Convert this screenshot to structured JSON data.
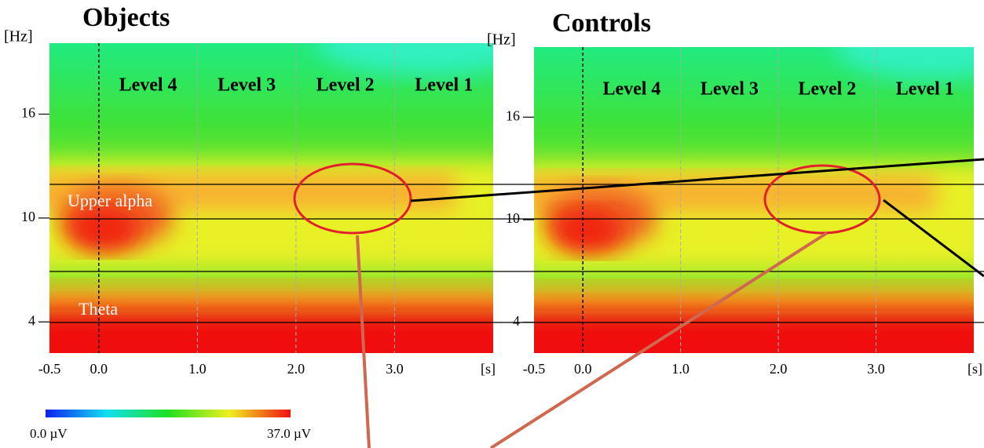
{
  "panels": [
    {
      "title": "Objects",
      "y_unit": "[Hz]",
      "x_unit": "[s]",
      "xlim": [
        -0.5,
        4.0
      ],
      "ylim": [
        2.2,
        20.1
      ],
      "xticks": [
        -0.5,
        {
          "value": 0,
          "label": "0.0"
        },
        {
          "value": 1,
          "label": "1.0"
        },
        {
          "value": 2,
          "label": "2.0"
        },
        {
          "value": 3,
          "label": "3.0"
        }
      ],
      "yticks": [
        4,
        10,
        16
      ],
      "levels": [
        "Level 4",
        "Level 3",
        "Level 2",
        "Level 1"
      ]
    },
    {
      "title": "Controls",
      "y_unit": "[Hz]",
      "x_unit": "[s]",
      "xlim": [
        -0.5,
        4.0
      ],
      "ylim": [
        2.2,
        20.1
      ],
      "xticks": [
        -0.5,
        {
          "value": 0,
          "label": "0.0"
        },
        {
          "value": 1,
          "label": "1.0"
        },
        {
          "value": 2,
          "label": "2.0"
        },
        {
          "value": 3,
          "label": "3.0"
        }
      ],
      "yticks": [
        4,
        10,
        16
      ],
      "levels": [
        "Level 4",
        "Level 3",
        "Level 2",
        "Level 1"
      ]
    }
  ],
  "bands": [
    "Upper alpha",
    "Theta"
  ],
  "colorbar": {
    "min_label": "0.0 µV",
    "max_label": "37.0 µV"
  }
}
